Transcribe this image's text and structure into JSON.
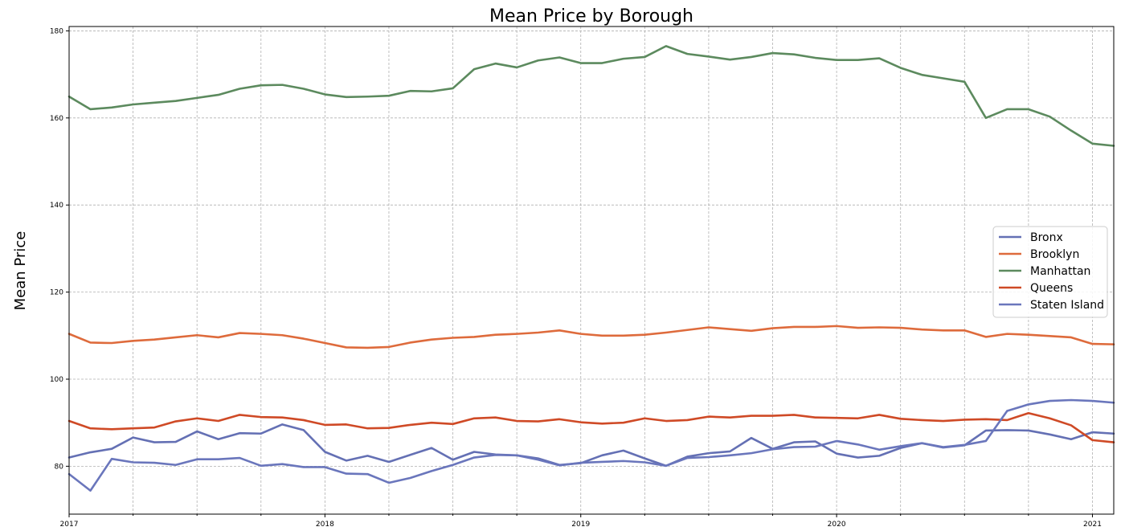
{
  "chart_data": {
    "type": "line",
    "title": "Mean Price by Borough",
    "ylabel": "Mean Price",
    "xlabel": "",
    "ylim": [
      69,
      181
    ],
    "xlim": [
      2017.0,
      2021.0833
    ],
    "yticks": [
      80,
      100,
      120,
      140,
      160,
      180
    ],
    "xticks": [
      {
        "value": 2017,
        "label": "2017"
      },
      {
        "value": 2018,
        "label": "2018"
      },
      {
        "value": 2019,
        "label": "2019"
      },
      {
        "value": 2020,
        "label": "2020"
      },
      {
        "value": 2021,
        "label": "2021"
      }
    ],
    "grid": true,
    "legend_position": "center-right",
    "series": [
      {
        "name": "Bronx",
        "color": "#6470b4",
        "values": [
          82.0,
          83.2,
          84.0,
          86.6,
          85.5,
          85.6,
          88.0,
          86.2,
          87.6,
          87.5,
          89.6,
          88.3,
          83.3,
          81.3,
          82.4,
          81.0,
          82.6,
          84.2,
          81.5,
          83.3,
          82.7,
          82.5,
          81.8,
          80.3,
          80.7,
          82.5,
          83.6,
          81.8,
          80.1,
          82.2,
          83.0,
          83.4,
          86.5,
          84.0,
          85.5,
          85.7,
          82.9,
          82.0,
          82.4,
          84.2,
          85.3,
          84.3,
          84.8,
          88.2,
          88.3,
          88.2,
          87.3,
          86.2,
          87.8,
          87.5
        ]
      },
      {
        "name": "Brooklyn",
        "color": "#de6b3c",
        "values": [
          110.4,
          108.4,
          108.3,
          108.8,
          109.1,
          109.6,
          110.1,
          109.6,
          110.6,
          110.4,
          110.1,
          109.3,
          108.3,
          107.3,
          107.2,
          107.4,
          108.4,
          109.1,
          109.5,
          109.7,
          110.2,
          110.4,
          110.7,
          111.2,
          110.4,
          110.0,
          110.0,
          110.2,
          110.7,
          111.3,
          111.9,
          111.5,
          111.1,
          111.7,
          112.0,
          112.0,
          112.2,
          111.8,
          111.9,
          111.8,
          111.4,
          111.2,
          111.2,
          109.7,
          110.4,
          110.2,
          109.9,
          109.6,
          108.1,
          108.0
        ]
      },
      {
        "name": "Manhattan",
        "color": "#5c8a5e",
        "values": [
          164.9,
          162.0,
          162.4,
          163.1,
          163.5,
          163.9,
          164.6,
          165.3,
          166.7,
          167.5,
          167.6,
          166.7,
          165.4,
          164.8,
          164.9,
          165.1,
          166.2,
          166.1,
          166.8,
          171.2,
          172.5,
          171.6,
          173.2,
          173.9,
          172.6,
          172.6,
          173.6,
          174.0,
          176.5,
          174.7,
          174.1,
          173.4,
          174.0,
          174.9,
          174.6,
          173.8,
          173.3,
          173.3,
          173.7,
          171.5,
          169.9,
          169.1,
          168.3,
          160.0,
          162.0,
          162.0,
          160.3,
          157.1,
          154.1,
          153.6
        ]
      },
      {
        "name": "Queens",
        "color": "#cf4a26",
        "values": [
          90.4,
          88.7,
          88.5,
          88.7,
          88.9,
          90.3,
          91.0,
          90.4,
          91.8,
          91.3,
          91.2,
          90.6,
          89.5,
          89.6,
          88.7,
          88.8,
          89.5,
          90.0,
          89.7,
          91.0,
          91.2,
          90.4,
          90.3,
          90.8,
          90.1,
          89.8,
          90.0,
          91.0,
          90.4,
          90.6,
          91.4,
          91.2,
          91.6,
          91.6,
          91.8,
          91.2,
          91.1,
          91.0,
          91.8,
          90.9,
          90.6,
          90.4,
          90.7,
          90.8,
          90.6,
          92.2,
          91.0,
          89.4,
          86.0,
          85.5
        ]
      },
      {
        "name": "Staten Island",
        "color": "#6a76bc",
        "values": [
          78.2,
          74.4,
          81.7,
          80.9,
          80.8,
          80.3,
          81.6,
          81.6,
          81.9,
          80.1,
          80.5,
          79.8,
          79.8,
          78.3,
          78.2,
          76.2,
          77.3,
          78.9,
          80.3,
          82.0,
          82.6,
          82.5,
          81.5,
          80.2,
          80.8,
          81.0,
          81.2,
          80.9,
          80.1,
          81.9,
          82.1,
          82.5,
          83.0,
          83.9,
          84.4,
          84.5,
          85.8,
          85.0,
          83.8,
          84.6,
          85.3,
          84.4,
          84.9,
          85.8,
          92.7,
          94.2,
          95.0,
          95.2,
          95.0,
          94.6
        ]
      }
    ]
  }
}
